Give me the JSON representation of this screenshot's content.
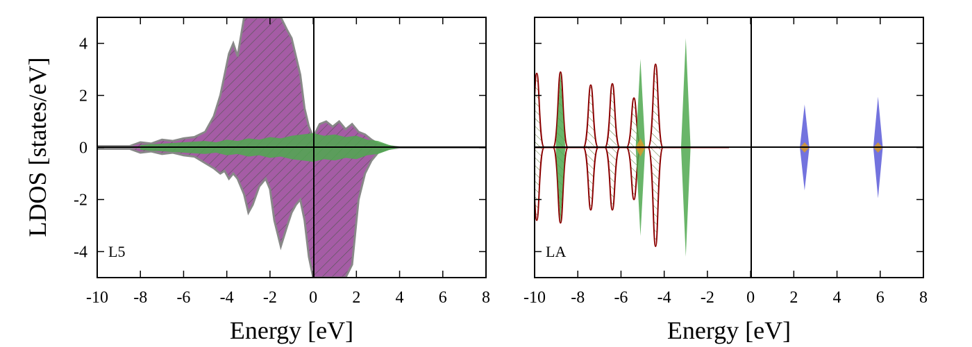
{
  "figure": {
    "ylabel": "LDOS [states/eV]"
  },
  "chart_data": [
    {
      "type": "area",
      "panel_label": "L5",
      "xlabel": "Energy [eV]",
      "ylabel": "LDOS [states/eV]",
      "xlim": [
        -10,
        8
      ],
      "ylim": [
        -5,
        5
      ],
      "xticks": [
        -10,
        -8,
        -6,
        -4,
        -2,
        0,
        2,
        4,
        6,
        8
      ],
      "yticks": [
        -4,
        -2,
        0,
        2,
        4
      ],
      "grid": false,
      "colors": {
        "magenta": "#9b4a9b",
        "green": "#4fa84f",
        "grey": "#888888"
      },
      "series": [
        {
          "style": "total-hatched",
          "color": "#9b4a9b",
          "x": [
            -10,
            -8.5,
            -8,
            -7.5,
            -7,
            -6.5,
            -6,
            -5.5,
            -5,
            -4.6,
            -4.3,
            -4.1,
            -3.9,
            -3.7,
            -3.5,
            -3.2,
            -3.0,
            -2.8,
            -2.5,
            -2.2,
            -2.0,
            -1.8,
            -1.5,
            -1.2,
            -1.0,
            -0.8,
            -0.6,
            -0.4,
            -0.2,
            0.0,
            0.3,
            0.6,
            0.9,
            1.2,
            1.5,
            1.8,
            2.1,
            2.4,
            2.7,
            3.0,
            3.5,
            4.0,
            8.0
          ],
          "up": [
            0.05,
            0.05,
            0.2,
            0.15,
            0.3,
            0.25,
            0.35,
            0.4,
            0.6,
            1.2,
            2.0,
            2.8,
            3.6,
            4.0,
            3.5,
            5.0,
            5.0,
            5.0,
            5.0,
            5.0,
            5.0,
            5.0,
            5.0,
            4.5,
            4.2,
            3.5,
            2.8,
            1.5,
            0.8,
            0.4,
            0.9,
            1.0,
            0.8,
            1.0,
            0.7,
            0.9,
            0.6,
            0.5,
            0.3,
            0.15,
            0.05,
            0.0,
            0.0
          ],
          "down": [
            -0.05,
            -0.05,
            -0.2,
            -0.15,
            -0.25,
            -0.2,
            -0.3,
            -0.35,
            -0.6,
            -0.8,
            -1.0,
            -0.9,
            -1.2,
            -1.0,
            -1.2,
            -1.8,
            -2.5,
            -2.2,
            -1.5,
            -1.2,
            -1.6,
            -2.8,
            -3.8,
            -3.0,
            -2.5,
            -2.2,
            -2.0,
            -2.8,
            -4.2,
            -5.0,
            -5.0,
            -5.0,
            -5.0,
            -5.0,
            -5.0,
            -4.5,
            -2.0,
            -1.0,
            -0.5,
            -0.2,
            -0.05,
            0.0,
            0.0
          ]
        },
        {
          "style": "filled",
          "color": "#4fa84f",
          "x": [
            -8,
            -7,
            -6,
            -5,
            -4.5,
            -4,
            -3.5,
            -3,
            -2.5,
            -2,
            -1.5,
            -1,
            -0.5,
            0,
            0.5,
            1,
            1.5,
            2,
            2.5,
            3,
            3.5,
            4
          ],
          "up": [
            0.1,
            0.15,
            0.2,
            0.25,
            0.2,
            0.3,
            0.25,
            0.35,
            0.3,
            0.4,
            0.35,
            0.45,
            0.5,
            0.55,
            0.45,
            0.5,
            0.4,
            0.45,
            0.3,
            0.25,
            0.1,
            0.0
          ],
          "down": [
            -0.1,
            -0.15,
            -0.2,
            -0.25,
            -0.2,
            -0.3,
            -0.25,
            -0.35,
            -0.3,
            -0.4,
            -0.35,
            -0.45,
            -0.5,
            -0.55,
            -0.45,
            -0.5,
            -0.4,
            -0.45,
            -0.3,
            -0.25,
            -0.1,
            0.0
          ]
        }
      ]
    },
    {
      "type": "area",
      "panel_label": "LA",
      "xlabel": "Energy [eV]",
      "ylabel": "",
      "xlim": [
        -10,
        8
      ],
      "ylim": [
        -5,
        5
      ],
      "xticks": [
        -10,
        -8,
        -6,
        -4,
        -2,
        0,
        2,
        4,
        6,
        8
      ],
      "yticks": [
        -4,
        -2,
        0,
        2,
        4
      ],
      "grid": false,
      "colors": {
        "darkred": "#8b0000",
        "green": "#4fa84f",
        "blue": "#5a5ad8",
        "orange": "#d89a2a"
      },
      "series": [
        {
          "style": "peaks-outline-hatched",
          "color": "#8b0000",
          "peaks": [
            {
              "x": -9.9,
              "up": 2.85,
              "down": -2.8
            },
            {
              "x": -8.8,
              "up": 2.9,
              "down": -2.9
            },
            {
              "x": -7.4,
              "up": 2.4,
              "down": -2.4
            },
            {
              "x": -6.4,
              "up": 2.45,
              "down": -2.4
            },
            {
              "x": -5.4,
              "up": 1.9,
              "down": -2.0
            },
            {
              "x": -4.4,
              "up": 3.2,
              "down": -3.8
            }
          ]
        },
        {
          "style": "peaks-filled",
          "color": "#4fa84f",
          "peaks": [
            {
              "x": -8.8,
              "up": 2.9,
              "down": -2.9
            },
            {
              "x": -5.1,
              "up": 3.4,
              "down": -3.4
            },
            {
              "x": -3.0,
              "up": 4.2,
              "down": -4.2
            }
          ]
        },
        {
          "style": "peaks-filled",
          "color": "#5a5ad8",
          "peaks": [
            {
              "x": 2.5,
              "up": 1.65,
              "down": -1.65
            },
            {
              "x": 5.9,
              "up": 1.95,
              "down": -1.95
            }
          ]
        },
        {
          "style": "peaks-filled",
          "color": "#d89a2a",
          "peaks": [
            {
              "x": -5.1,
              "up": 0.35,
              "down": -0.35
            },
            {
              "x": 2.5,
              "up": 0.2,
              "down": -0.2
            },
            {
              "x": 5.9,
              "up": 0.2,
              "down": -0.2
            }
          ]
        }
      ]
    }
  ]
}
